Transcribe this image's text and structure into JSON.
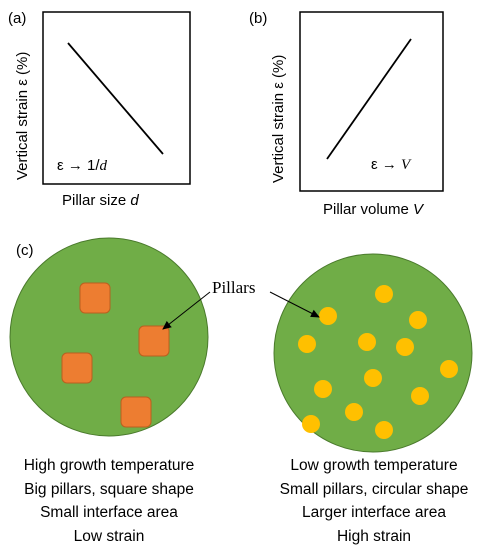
{
  "panels": {
    "a": {
      "label": "(a)",
      "ylabel": "Vertical strain ε (%)",
      "xlabel": "Pillar size ",
      "xlabel_var": "d",
      "relation": "ε → 1/",
      "relation_var": "d"
    },
    "b": {
      "label": "(b)",
      "ylabel": "Vertical strain ε (%)",
      "xlabel": "Pillar volume ",
      "xlabel_var": "V",
      "relation": "ε → ",
      "relation_var": "V"
    },
    "c": {
      "label": "(c)",
      "pillars_label": "Pillars",
      "left_caption": [
        "High growth temperature",
        "Big pillars, square shape",
        "Small interface area",
        "Low strain"
      ],
      "right_caption": [
        "Low growth temperature",
        "Small pillars, circular shape",
        "Larger interface area",
        "High strain"
      ]
    }
  },
  "colors": {
    "matrix_green": "#70AD47",
    "square_orange": "#ED7D31",
    "circle_yellow": "#FFC000"
  }
}
